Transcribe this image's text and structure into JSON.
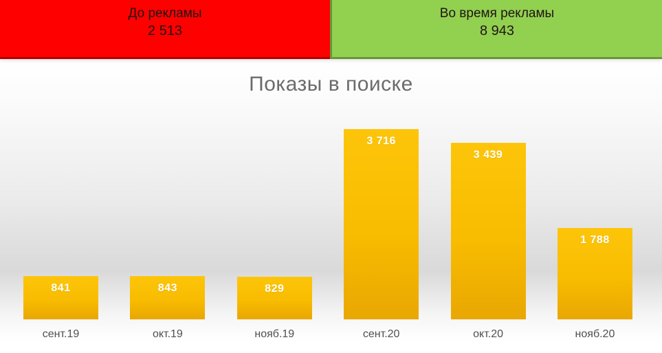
{
  "banner": {
    "before": {
      "label": "До рекламы",
      "value": "2 513",
      "bg": "#FE0000"
    },
    "during": {
      "label": "Во время рекламы",
      "value": "8 943",
      "bg": "#92D050"
    }
  },
  "chart_data": {
    "type": "bar",
    "title": "Показы в поиске",
    "categories": [
      "сент.19",
      "окт.19",
      "нояб.19",
      "сент.20",
      "окт.20",
      "нояб.20"
    ],
    "values": [
      841,
      843,
      829,
      3716,
      3439,
      1788
    ],
    "value_labels": [
      "841",
      "843",
      "829",
      "3 716",
      "3 439",
      "1 788"
    ],
    "xlabel": "",
    "ylabel": "",
    "ylim": [
      0,
      4000
    ],
    "grid": false,
    "legend": false,
    "bar_color": "#F8BC00",
    "value_label_color": "#FFFFFF",
    "category_label_color": "#4F4F4F",
    "title_color": "#6B6B6B"
  }
}
